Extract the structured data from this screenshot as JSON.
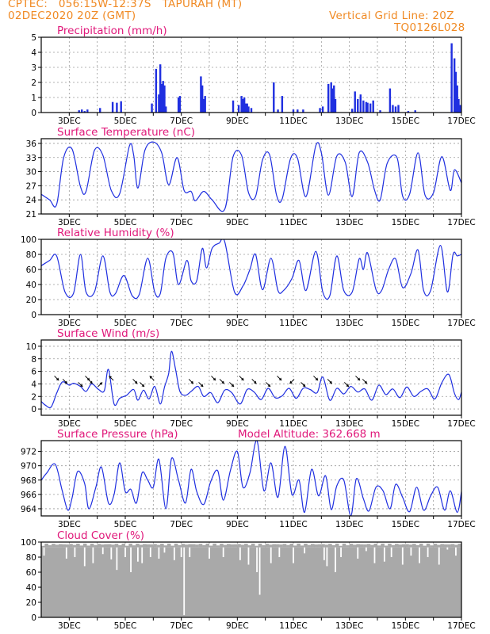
{
  "header": {
    "line1": "CPTEC:   056:15W-12:37S   TAPURAH (MT)",
    "line2": "02DEC2020 20Z (GMT)",
    "grid_note": "Vertical Grid Line: 20Z",
    "code": "TQ0126L028"
  },
  "colors": {
    "header": "#f08a24",
    "title": "#e0187a",
    "series": "#1f2fe0",
    "cloud": "#a9a9a9"
  },
  "chart_data": [
    {
      "type": "bar",
      "title": "Precipitation (mm/h)",
      "x_unit": "day of December 2020",
      "ylim": [
        0,
        5
      ],
      "yticks": [
        0,
        1,
        2,
        3,
        4,
        5
      ],
      "xlim": [
        2.0,
        17.0
      ],
      "xticks": [
        "3DEC",
        "5DEC",
        "7DEC",
        "9DEC",
        "11DEC",
        "13DEC",
        "15DEC",
        "17DEC"
      ],
      "grid": true,
      "x": [
        3.35,
        3.45,
        3.55,
        3.65,
        4.1,
        4.55,
        4.7,
        4.85,
        5.95,
        6.1,
        6.2,
        6.25,
        6.3,
        6.35,
        6.4,
        6.45,
        6.9,
        6.95,
        7.7,
        7.75,
        7.8,
        7.85,
        8.85,
        9.05,
        9.15,
        9.2,
        9.25,
        9.3,
        9.35,
        9.4,
        9.5,
        10.3,
        10.45,
        10.6,
        11.0,
        11.15,
        11.35,
        11.95,
        12.05,
        12.25,
        12.35,
        12.4,
        12.45,
        12.5,
        13.1,
        13.2,
        13.3,
        13.4,
        13.5,
        13.6,
        13.65,
        13.75,
        13.85,
        14.1,
        14.45,
        14.55,
        14.65,
        14.75,
        15.1,
        15.35,
        16.65,
        16.75,
        16.8,
        16.85,
        16.9,
        16.95
      ],
      "values": [
        0.15,
        0.2,
        0.1,
        0.2,
        0.3,
        0.7,
        0.65,
        0.75,
        0.6,
        2.9,
        1.2,
        3.2,
        1.9,
        2.1,
        1.8,
        0.4,
        1.0,
        1.1,
        2.4,
        1.8,
        0.9,
        1.1,
        0.8,
        0.5,
        1.1,
        0.9,
        1.0,
        0.6,
        0.6,
        0.4,
        0.3,
        2.0,
        0.2,
        1.1,
        0.2,
        0.2,
        0.2,
        0.3,
        0.4,
        1.9,
        2.0,
        1.6,
        1.8,
        0.9,
        0.25,
        1.4,
        0.9,
        1.2,
        0.8,
        0.7,
        0.65,
        0.6,
        0.8,
        0.15,
        1.6,
        0.5,
        0.4,
        0.5,
        0.1,
        0.15,
        4.6,
        3.6,
        2.7,
        1.8,
        0.9,
        0.5
      ]
    },
    {
      "type": "line",
      "title": "Surface Temperature (nC)",
      "ylim": [
        21,
        37
      ],
      "yticks": [
        21,
        24,
        27,
        30,
        33,
        36
      ],
      "xlim": [
        2.0,
        17.0
      ],
      "xticks": [
        "3DEC",
        "5DEC",
        "7DEC",
        "9DEC",
        "11DEC",
        "13DEC",
        "15DEC",
        "17DEC"
      ],
      "grid": true,
      "x": [
        2.0,
        2.3,
        2.55,
        2.8,
        3.1,
        3.4,
        3.6,
        3.9,
        4.2,
        4.5,
        4.8,
        5.15,
        5.3,
        5.45,
        5.7,
        6.0,
        6.3,
        6.55,
        6.85,
        7.1,
        7.35,
        7.5,
        7.8,
        8.1,
        8.55,
        8.85,
        9.15,
        9.4,
        9.65,
        9.9,
        10.15,
        10.4,
        10.6,
        10.9,
        11.15,
        11.45,
        11.8,
        12.0,
        12.25,
        12.55,
        12.85,
        13.1,
        13.35,
        13.65,
        13.9,
        14.1,
        14.35,
        14.7,
        14.9,
        15.15,
        15.45,
        15.7,
        16.0,
        16.3,
        16.6,
        16.75,
        17.0
      ],
      "values": [
        25.2,
        24.0,
        23.0,
        33.0,
        34.8,
        26.8,
        25.8,
        34.5,
        33.5,
        26.0,
        25.3,
        35.5,
        33.5,
        26.5,
        34.5,
        36.3,
        34.0,
        27.2,
        33.0,
        26.0,
        25.8,
        23.8,
        25.8,
        24.0,
        22.0,
        33.2,
        33.5,
        25.5,
        24.7,
        32.5,
        33.6,
        25.0,
        24.2,
        32.8,
        32.8,
        24.7,
        35.5,
        34.0,
        25.0,
        33.3,
        32.0,
        24.7,
        34.0,
        32.0,
        26.0,
        24.0,
        31.8,
        33.0,
        24.8,
        25.2,
        34.0,
        25.0,
        25.5,
        33.2,
        26.0,
        30.4,
        27.6
      ]
    },
    {
      "type": "line",
      "title": "Relative Humidity (%)",
      "ylim": [
        0,
        100
      ],
      "yticks": [
        0,
        20,
        40,
        60,
        80,
        100
      ],
      "xlim": [
        2.0,
        17.0
      ],
      "xticks": [
        "3DEC",
        "5DEC",
        "7DEC",
        "9DEC",
        "11DEC",
        "13DEC",
        "15DEC",
        "17DEC"
      ],
      "grid": true,
      "x": [
        2.0,
        2.3,
        2.55,
        2.85,
        3.15,
        3.4,
        3.6,
        3.9,
        4.2,
        4.45,
        4.65,
        4.95,
        5.25,
        5.5,
        5.8,
        6.05,
        6.25,
        6.45,
        6.7,
        6.9,
        7.2,
        7.35,
        7.55,
        7.75,
        7.9,
        8.1,
        8.35,
        8.55,
        8.9,
        9.2,
        9.45,
        9.65,
        9.9,
        10.2,
        10.45,
        10.65,
        10.95,
        11.2,
        11.45,
        11.8,
        12.05,
        12.3,
        12.55,
        12.8,
        13.1,
        13.35,
        13.5,
        13.65,
        13.95,
        14.15,
        14.4,
        14.65,
        14.9,
        15.2,
        15.45,
        15.65,
        15.9,
        16.25,
        16.5,
        16.7,
        16.85,
        17.0
      ],
      "values": [
        65,
        72,
        78,
        30,
        28,
        80,
        30,
        30,
        78,
        30,
        28,
        52,
        25,
        27,
        75,
        30,
        28,
        75,
        82,
        40,
        72,
        45,
        45,
        88,
        62,
        88,
        95,
        97,
        30,
        38,
        60,
        80,
        33,
        75,
        32,
        32,
        48,
        72,
        32,
        84,
        30,
        25,
        78,
        32,
        30,
        74,
        60,
        82,
        33,
        32,
        60,
        74,
        36,
        55,
        86,
        32,
        32,
        92,
        30,
        80,
        78,
        80
      ]
    },
    {
      "type": "line",
      "title": "Surface Wind (m/s)",
      "ylim": [
        -1,
        11
      ],
      "yticks": [
        0,
        2,
        4,
        6,
        8,
        10
      ],
      "xlim": [
        2.0,
        17.0
      ],
      "xticks": [
        "3DEC",
        "5DEC",
        "7DEC",
        "9DEC",
        "11DEC",
        "13DEC",
        "15DEC",
        "17DEC"
      ],
      "grid": true,
      "x": [
        2.0,
        2.15,
        2.35,
        2.55,
        2.75,
        3.0,
        3.15,
        3.4,
        3.6,
        3.8,
        4.05,
        4.25,
        4.4,
        4.6,
        4.8,
        5.05,
        5.3,
        5.45,
        5.65,
        5.85,
        6.05,
        6.25,
        6.4,
        6.55,
        6.65,
        6.8,
        6.95,
        7.15,
        7.35,
        7.6,
        7.8,
        8.05,
        8.3,
        8.55,
        8.8,
        9.1,
        9.35,
        9.6,
        9.85,
        10.1,
        10.35,
        10.6,
        10.85,
        11.1,
        11.35,
        11.6,
        11.85,
        12.05,
        12.3,
        12.55,
        12.8,
        13.05,
        13.3,
        13.55,
        13.8,
        14.05,
        14.3,
        14.55,
        14.8,
        15.05,
        15.3,
        15.55,
        15.8,
        16.05,
        16.3,
        16.55,
        16.75,
        16.9,
        17.0
      ],
      "values": [
        1.2,
        0.6,
        0.3,
        2.5,
        4.3,
        3.8,
        4.1,
        3.6,
        2.8,
        4.0,
        3.1,
        2.9,
        6.3,
        0.8,
        1.7,
        2.2,
        3.1,
        1.4,
        3.0,
        1.6,
        3.6,
        0.8,
        3.5,
        5.7,
        9.2,
        6.2,
        2.8,
        2.2,
        2.8,
        3.6,
        2.0,
        2.6,
        1.0,
        3.0,
        2.6,
        0.8,
        3.1,
        2.7,
        1.5,
        3.3,
        1.8,
        2.1,
        3.3,
        1.7,
        3.3,
        3.1,
        2.6,
        5.1,
        1.4,
        3.3,
        2.4,
        3.6,
        2.7,
        3.2,
        1.4,
        3.8,
        2.3,
        3.2,
        1.8,
        3.5,
        2.0,
        2.8,
        3.2,
        1.6,
        4.2,
        5.5,
        2.5,
        1.5,
        2.7
      ],
      "arrow_directions_deg": [
        315,
        315,
        315,
        315,
        315,
        45,
        135,
        315,
        315,
        135,
        315,
        315,
        315,
        315,
        315,
        315,
        315,
        315,
        315,
        225,
        315,
        315,
        315,
        315,
        315,
        315
      ],
      "arrow_x": [
        2.55,
        2.85,
        3.4,
        3.65,
        3.75,
        4.1,
        4.5,
        5.35,
        5.6,
        5.95,
        7.35,
        7.7,
        8.15,
        8.45,
        8.8,
        9.15,
        9.6,
        10.1,
        10.5,
        10.95,
        11.35,
        11.8,
        12.3,
        12.9,
        13.3,
        13.55
      ]
    },
    {
      "type": "line",
      "title": "Surface Pressure (hPa)",
      "annotation": "Model Altitude: 362.668 m",
      "ylim": [
        963,
        973.5
      ],
      "yticks": [
        964,
        966,
        968,
        970,
        972
      ],
      "xlim": [
        2.0,
        17.0
      ],
      "xticks": [
        "3DEC",
        "5DEC",
        "7DEC",
        "9DEC",
        "11DEC",
        "13DEC",
        "15DEC",
        "17DEC"
      ],
      "grid": true,
      "x": [
        2.0,
        2.2,
        2.5,
        2.75,
        2.95,
        3.1,
        3.3,
        3.55,
        3.7,
        3.95,
        4.15,
        4.4,
        4.6,
        4.8,
        5.0,
        5.2,
        5.4,
        5.6,
        5.8,
        6.0,
        6.2,
        6.45,
        6.65,
        6.9,
        7.15,
        7.35,
        7.55,
        7.8,
        8.05,
        8.3,
        8.5,
        8.75,
        9.0,
        9.2,
        9.45,
        9.7,
        9.95,
        10.2,
        10.45,
        10.7,
        10.95,
        11.2,
        11.4,
        11.65,
        11.9,
        12.15,
        12.35,
        12.55,
        12.8,
        13.05,
        13.25,
        13.5,
        13.7,
        13.95,
        14.2,
        14.45,
        14.65,
        14.9,
        15.15,
        15.4,
        15.65,
        15.9,
        16.15,
        16.4,
        16.6,
        16.85,
        17.0
      ],
      "values": [
        968.0,
        969.0,
        970.2,
        966.5,
        963.8,
        965.5,
        969.2,
        967.5,
        964.0,
        967.0,
        969.8,
        964.8,
        966.0,
        970.4,
        966.4,
        966.7,
        964.8,
        969.0,
        968.0,
        967.0,
        970.9,
        964.0,
        971.0,
        968.0,
        964.8,
        969.5,
        966.4,
        964.6,
        967.8,
        969.3,
        965.2,
        969.3,
        972.0,
        967.0,
        969.0,
        973.5,
        966.5,
        970.4,
        965.6,
        972.7,
        966.0,
        968.0,
        963.5,
        969.5,
        965.8,
        968.6,
        963.9,
        967.2,
        968.0,
        963.0,
        968.2,
        965.4,
        963.7,
        967.0,
        966.5,
        964.0,
        967.4,
        965.6,
        963.6,
        967.0,
        963.8,
        965.8,
        967.0,
        963.8,
        966.5,
        963.5,
        966.4
      ]
    },
    {
      "type": "bar",
      "title": "Cloud Cover (%)",
      "ylim": [
        0,
        100
      ],
      "yticks": [
        0,
        20,
        40,
        60,
        80,
        100
      ],
      "xlim": [
        2.0,
        17.0
      ],
      "xticks": [
        "3DEC",
        "5DEC",
        "7DEC",
        "9DEC",
        "11DEC",
        "13DEC",
        "15DEC",
        "17DEC"
      ],
      "grid": true,
      "baseline": 93,
      "dips_x": [
        2.1,
        2.9,
        3.2,
        3.55,
        3.85,
        4.2,
        4.5,
        4.7,
        5.0,
        5.2,
        5.45,
        5.6,
        5.9,
        6.2,
        6.4,
        6.75,
        7.0,
        7.1,
        7.3,
        8.0,
        8.5,
        9.1,
        9.4,
        9.7,
        9.8,
        10.2,
        10.5,
        11.0,
        11.4,
        12.1,
        12.2,
        12.5,
        12.7,
        13.3,
        13.6,
        13.9,
        14.25,
        14.5,
        14.9,
        15.2,
        15.5,
        15.8,
        16.2,
        16.5,
        16.8
      ],
      "dips_values": [
        82,
        78,
        80,
        68,
        72,
        84,
        77,
        63,
        80,
        60,
        74,
        72,
        80,
        78,
        86,
        76,
        80,
        3,
        80,
        78,
        80,
        76,
        70,
        60,
        30,
        72,
        80,
        72,
        85,
        76,
        68,
        60,
        80,
        78,
        88,
        72,
        74,
        80,
        70,
        82,
        72,
        80,
        70,
        90,
        82
      ]
    }
  ]
}
